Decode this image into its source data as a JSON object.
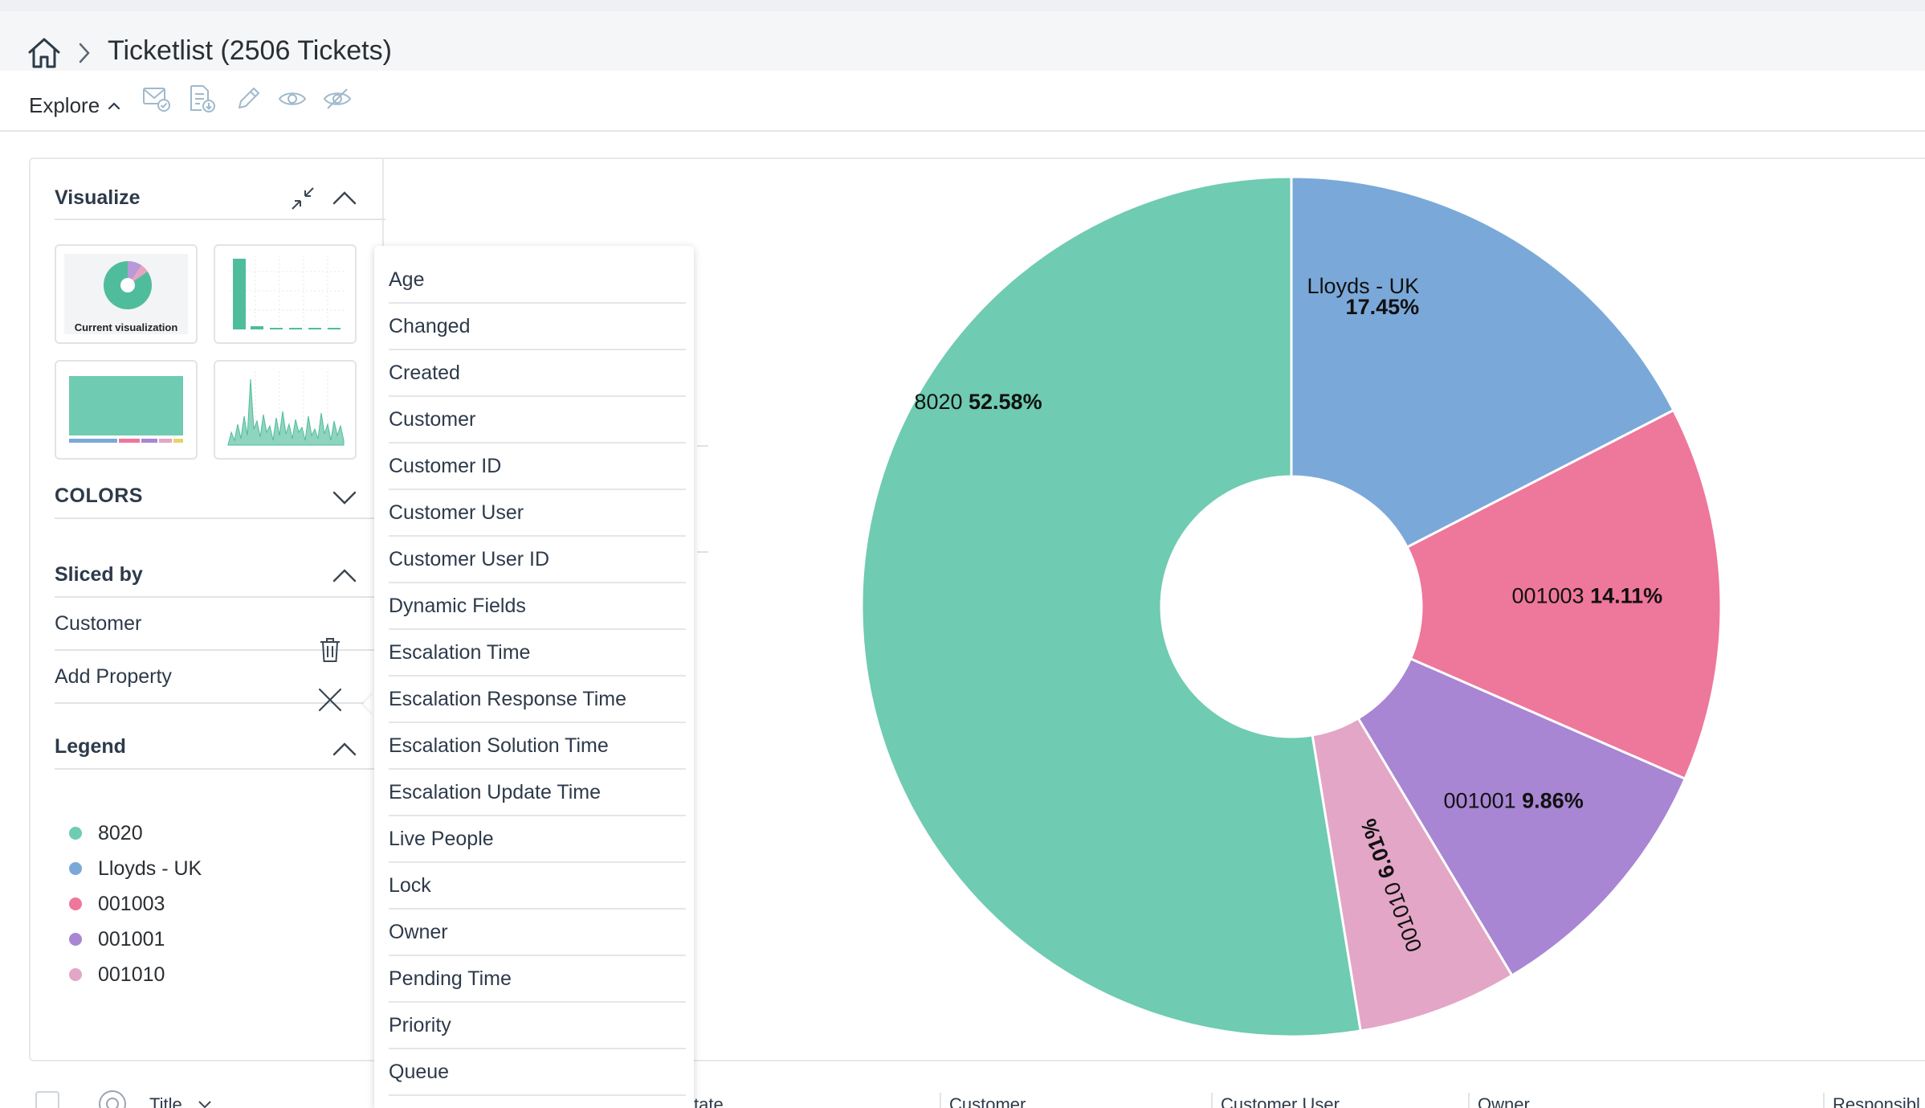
{
  "breadcrumb": {
    "title": "Ticketlist (2506 Tickets)"
  },
  "toolbar": {
    "explore_label": "Explore",
    "icons": [
      "mail-check-icon",
      "document-download-icon",
      "pencil-icon",
      "eye-icon",
      "eye-off-icon"
    ]
  },
  "visualize": {
    "title": "Visualize",
    "current_caption": "Current visualization"
  },
  "colors": {
    "title": "COLORS"
  },
  "sliced_by": {
    "title": "Sliced by",
    "items": [
      {
        "label": "Customer",
        "action_icon": "trash-icon"
      },
      {
        "label": "Add Property",
        "action_icon": "close-icon"
      }
    ]
  },
  "legend": {
    "title": "Legend",
    "items": [
      {
        "label": "8020",
        "color": "#6fcbb1"
      },
      {
        "label": "Lloyds - UK",
        "color": "#7aa9d9"
      },
      {
        "label": "001003",
        "color": "#ee779c"
      },
      {
        "label": "001001",
        "color": "#a886d3"
      },
      {
        "label": "001010",
        "color": "#e3a6c7"
      }
    ]
  },
  "property_menu": {
    "items": [
      "Age",
      "Changed",
      "Created",
      "Customer",
      "Customer ID",
      "Customer User",
      "Customer User ID",
      "Dynamic Fields",
      "Escalation Time",
      "Escalation Response Time",
      "Escalation Solution Time",
      "Escalation Update Time",
      "Live People",
      "Lock",
      "Owner",
      "Pending Time",
      "Priority",
      "Queue"
    ]
  },
  "chart_data": {
    "type": "pie",
    "donut": true,
    "slices": [
      {
        "label": "Lloyds - UK",
        "value": 17.45,
        "display": "17.45%",
        "color": "#7aa9d9"
      },
      {
        "label": "001003",
        "value": 14.11,
        "display": "14.11%",
        "color": "#ee779c"
      },
      {
        "label": "001001",
        "value": 9.86,
        "display": "9.86%",
        "color": "#a886d3"
      },
      {
        "label": "001010",
        "value": 6.01,
        "display": "6.01%",
        "color": "#e3a6c7"
      },
      {
        "label": "8020",
        "value": 52.58,
        "display": "52.58%",
        "color": "#6fcbb1"
      }
    ]
  },
  "table": {
    "columns": [
      "Title",
      "tate",
      "Customer",
      "Customer User",
      "Owner",
      "Responsibl"
    ]
  }
}
